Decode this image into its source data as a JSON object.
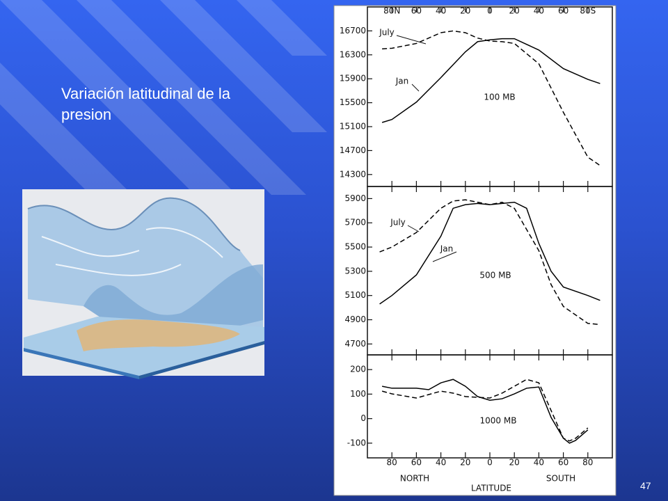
{
  "slide": {
    "title": "Variación latitudinal de la presion",
    "page_number": "47"
  },
  "chart_data": [
    {
      "type": "line",
      "title": "100 MB",
      "xlim": [
        100,
        -100
      ],
      "xticks": [
        {
          "value": 80,
          "label": "80N"
        },
        60,
        40,
        20,
        0,
        {
          "value": -20,
          "label": "20"
        },
        {
          "value": -40,
          "label": "40"
        },
        {
          "value": -60,
          "label": "60"
        },
        {
          "value": -80,
          "label": "80S"
        }
      ],
      "ylim": [
        14100,
        17100
      ],
      "yticks": [
        16700,
        16300,
        15900,
        15500,
        15100,
        14700,
        14300
      ],
      "series": [
        {
          "name": "July",
          "color": "#000000",
          "dashed": true,
          "x": [
            88,
            80,
            60,
            40,
            30,
            20,
            10,
            0,
            -10,
            -20,
            -40,
            -60,
            -80,
            -90
          ],
          "values": [
            16400,
            16410,
            16490,
            16670,
            16700,
            16670,
            16580,
            16530,
            16520,
            16490,
            16150,
            15340,
            14590,
            14450
          ]
        },
        {
          "name": "Jan",
          "color": "#000000",
          "dashed": false,
          "x": [
            88,
            80,
            60,
            40,
            20,
            10,
            0,
            -10,
            -20,
            -40,
            -60,
            -80,
            -90
          ],
          "values": [
            15170,
            15220,
            15510,
            15920,
            16350,
            16520,
            16550,
            16570,
            16570,
            16380,
            16070,
            15890,
            15820
          ]
        }
      ]
    },
    {
      "type": "line",
      "title": "500 MB",
      "xlim": [
        100,
        -100
      ],
      "xticks": [
        80,
        60,
        40,
        20,
        0,
        -20,
        -40,
        -60,
        -80
      ],
      "ylim": [
        4610,
        6000
      ],
      "yticks": [
        5900,
        5700,
        5500,
        5300,
        5100,
        4900,
        4700
      ],
      "series": [
        {
          "name": "July",
          "color": "#000000",
          "dashed": true,
          "x": [
            90,
            80,
            60,
            40,
            30,
            20,
            10,
            0,
            -10,
            -20,
            -40,
            -50,
            -60,
            -80,
            -90
          ],
          "values": [
            5460,
            5500,
            5620,
            5820,
            5880,
            5890,
            5870,
            5850,
            5870,
            5820,
            5470,
            5190,
            5010,
            4870,
            4860
          ]
        },
        {
          "name": "Jan",
          "color": "#000000",
          "dashed": false,
          "x": [
            90,
            80,
            60,
            40,
            30,
            20,
            10,
            0,
            -20,
            -30,
            -40,
            -50,
            -60,
            -80,
            -90
          ],
          "values": [
            5030,
            5100,
            5270,
            5590,
            5820,
            5850,
            5860,
            5850,
            5870,
            5820,
            5530,
            5300,
            5170,
            5100,
            5060
          ]
        }
      ]
    },
    {
      "type": "line",
      "title": "1000 MB",
      "xlabel": "LATITUDE",
      "annotations": [
        "NORTH",
        "SOUTH"
      ],
      "xlim": [
        100,
        -100
      ],
      "xticks": [
        80,
        60,
        40,
        20,
        0,
        {
          "value": -20,
          "label": "20"
        },
        {
          "value": -40,
          "label": "40"
        },
        {
          "value": -60,
          "label": "60"
        },
        {
          "value": -80,
          "label": "80"
        }
      ],
      "ylim": [
        -160,
        260
      ],
      "yticks": [
        200,
        100,
        0,
        -100
      ],
      "series": [
        {
          "color": "#000000",
          "dashed": true,
          "x": [
            88,
            80,
            60,
            40,
            30,
            20,
            0,
            -10,
            -20,
            -30,
            -40,
            -50,
            -60,
            -65,
            -70,
            -80
          ],
          "values": [
            112,
            101,
            84,
            112,
            104,
            90,
            84,
            104,
            132,
            160,
            146,
            33,
            -80,
            -91,
            -80,
            -38
          ]
        },
        {
          "color": "#000000",
          "dashed": false,
          "x": [
            88,
            80,
            60,
            50,
            40,
            30,
            20,
            10,
            0,
            -10,
            -20,
            -30,
            -40,
            -50,
            -60,
            -65,
            -70,
            -80
          ],
          "values": [
            132,
            124,
            124,
            118,
            146,
            160,
            132,
            90,
            75,
            81,
            101,
            124,
            129,
            5,
            -80,
            -100,
            -89,
            -46
          ]
        }
      ]
    }
  ]
}
